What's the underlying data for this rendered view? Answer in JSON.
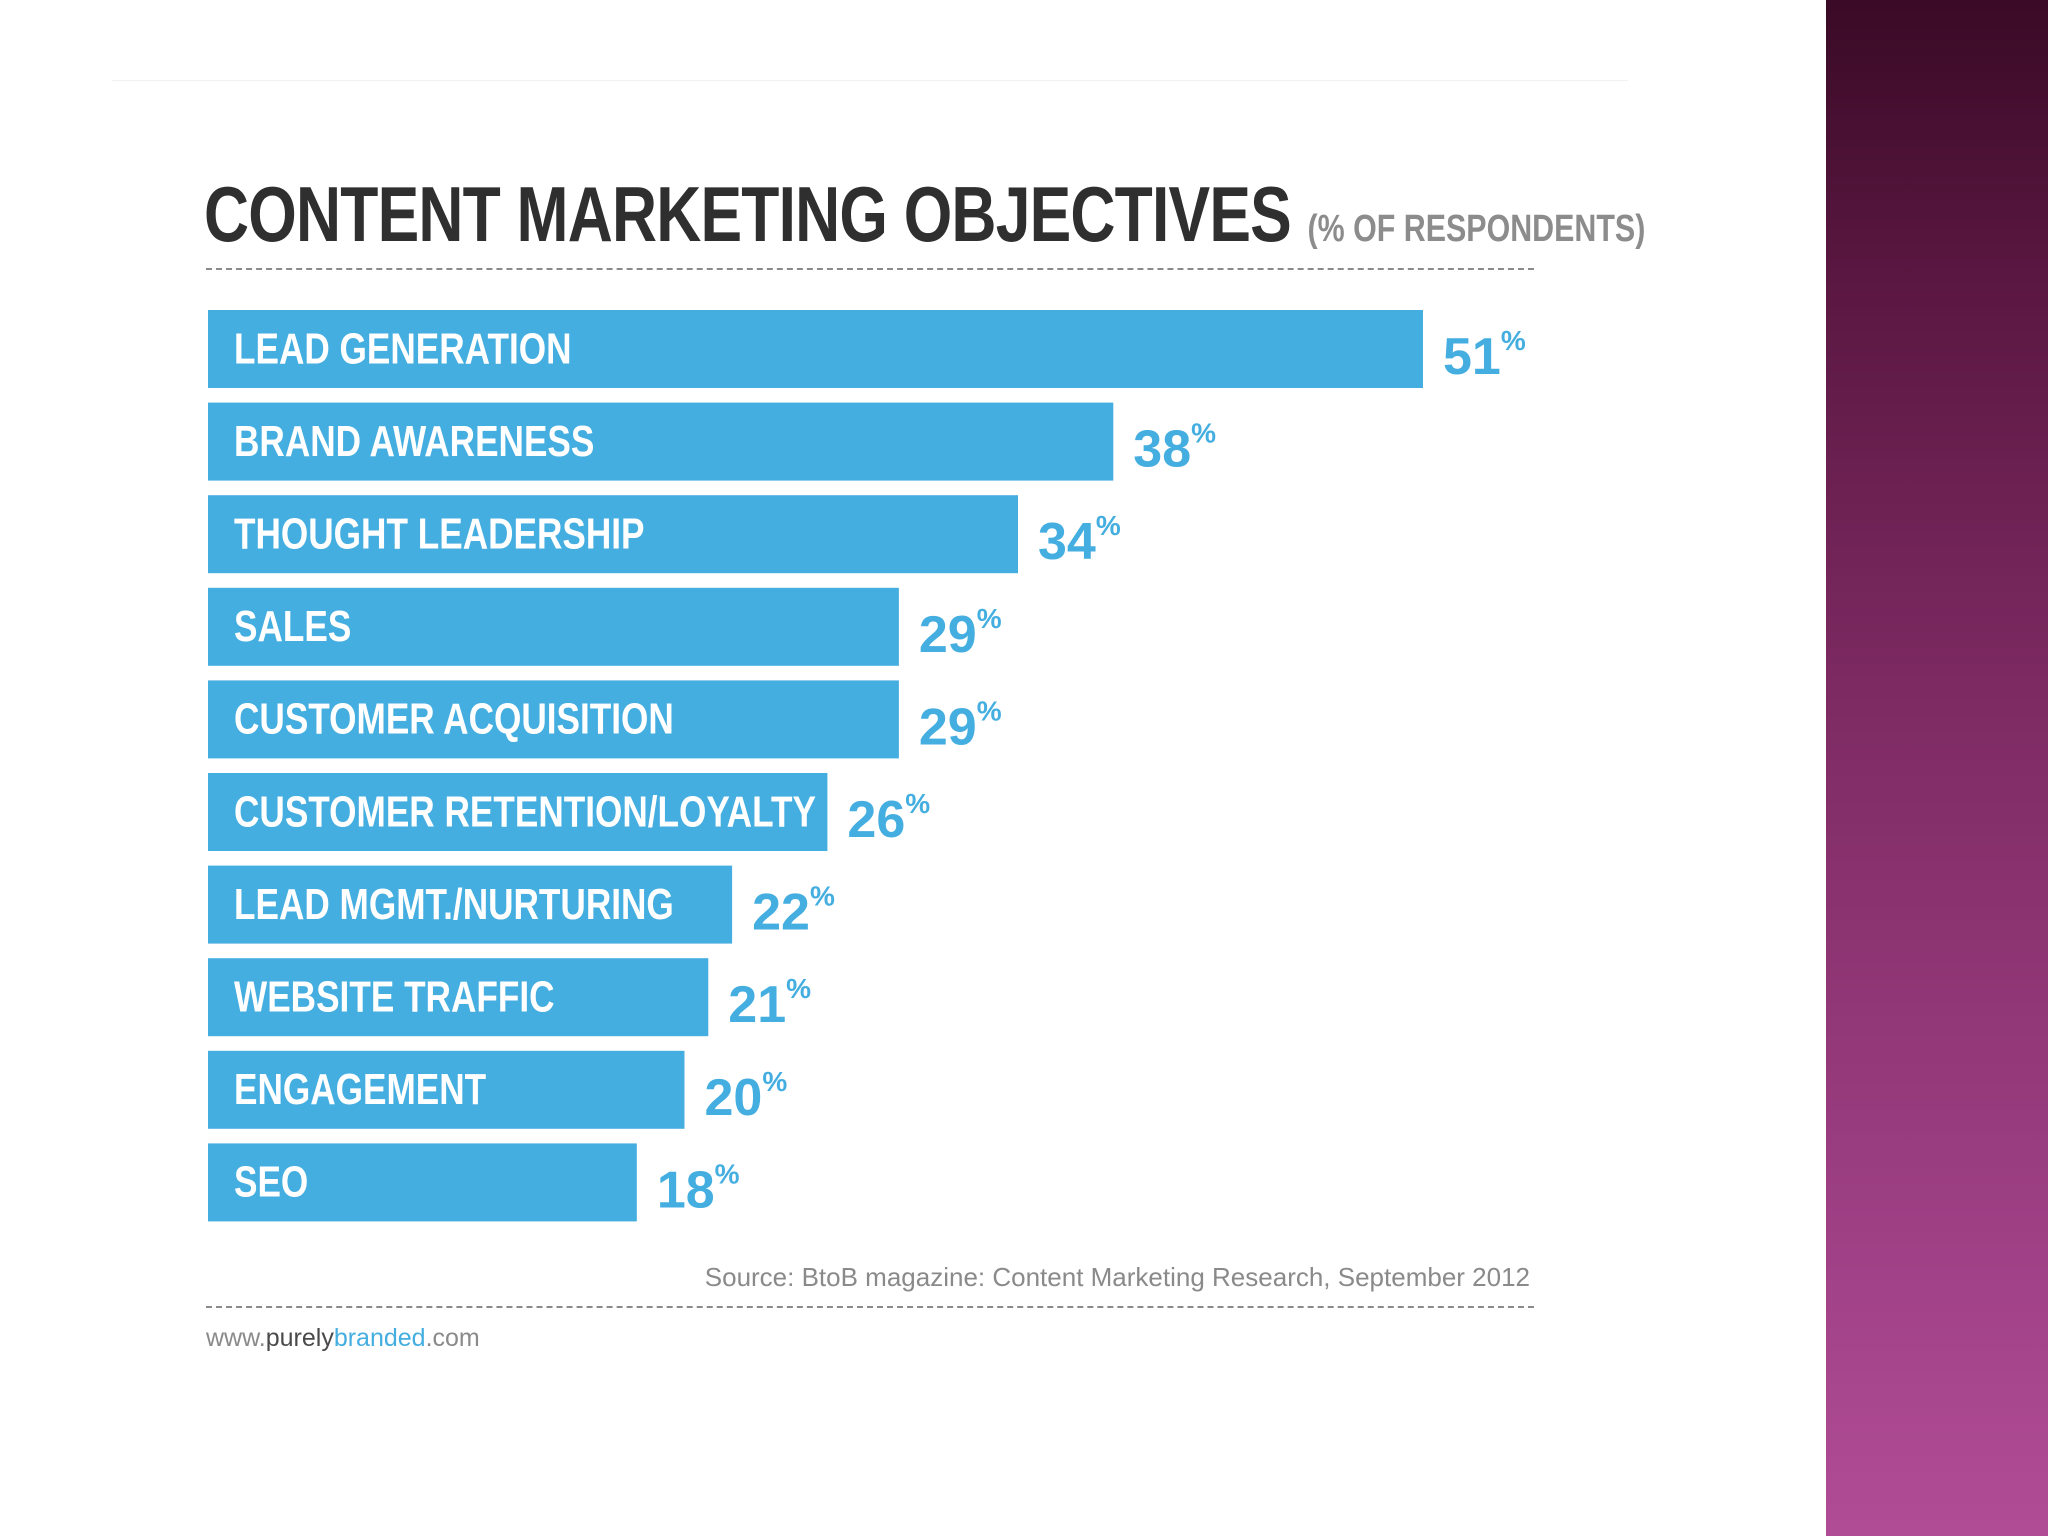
{
  "chart_data": {
    "type": "bar",
    "orientation": "horizontal",
    "title": "CONTENT MARKETING OBJECTIVES",
    "subtitle": "(% OF RESPONDENTS)",
    "categories": [
      "LEAD GENERATION",
      "BRAND AWARENESS",
      "THOUGHT LEADERSHIP",
      "SALES",
      "CUSTOMER ACQUISITION",
      "CUSTOMER RETENTION/LOYALTY",
      "LEAD MGMT./NURTURING",
      "WEBSITE TRAFFIC",
      "ENGAGEMENT",
      "SEO"
    ],
    "values": [
      51,
      38,
      34,
      29,
      29,
      26,
      22,
      21,
      20,
      18
    ],
    "value_unit": "%",
    "xlim": [
      0,
      51
    ],
    "bar_color": "#45aee0",
    "label_color": "#ffffff",
    "value_color": "#45aee0"
  },
  "source": "Source: BtoB magazine: Content Marketing Research, September 2012",
  "url": {
    "prefix": "www.",
    "middle": "purely",
    "brand": "branded",
    "suffix": ".com"
  },
  "colors": {
    "title": "#2f2f2f",
    "subtitle": "#8c8c8c",
    "side_band_top": "#3a0a26",
    "side_band_bottom": "#b04c96"
  }
}
